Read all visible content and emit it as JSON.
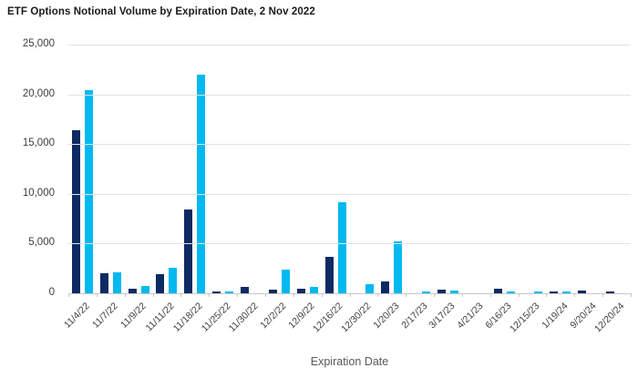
{
  "title": "ETF Options Notional Volume by Expiration Date, 2 Nov 2022",
  "colors": {
    "series_1": "#0e2a63",
    "series_2": "#00b9f0",
    "gridline": "#e2e2e2",
    "axis_line": "#c8c8c8",
    "title_text": "#1a1a1a",
    "tick_text": "#3f3f3f",
    "axis_title_text": "#595959"
  },
  "chart_data": {
    "type": "bar",
    "title": "ETF Options Notional Volume by Expiration Date, 2 Nov 2022",
    "xlabel": "Expiration Date",
    "ylabel": "",
    "ylim": [
      0,
      25000
    ],
    "ytick_interval": 5000,
    "ytick_labels": [
      "0",
      "5,000",
      "10,000",
      "15,000",
      "20,000",
      "25,000"
    ],
    "grid": true,
    "legend": "none",
    "categories": [
      "11/4/22",
      "11/7/22",
      "11/9/22",
      "11/11/22",
      "11/18/22",
      "11/25/22",
      "11/30/22",
      "12/2/22",
      "12/9/22",
      "12/16/22",
      "12/30/22",
      "1/20/23",
      "2/17/23",
      "3/17/23",
      "4/21/23",
      "6/16/23",
      "12/15/23",
      "1/19/24",
      "9/20/24",
      "12/20/24"
    ],
    "series": [
      {
        "name": "series_1_dark_navy",
        "color": "#0e2a63",
        "values": [
          16400,
          2000,
          450,
          1950,
          8450,
          200,
          600,
          400,
          450,
          3650,
          0,
          1150,
          0,
          400,
          0,
          500,
          0,
          200,
          250,
          200
        ]
      },
      {
        "name": "series_2_cyan",
        "color": "#00b9f0",
        "values": [
          20400,
          2100,
          750,
          2600,
          22000,
          200,
          0,
          2350,
          600,
          9200,
          950,
          5250,
          200,
          250,
          0,
          150,
          200,
          200,
          0,
          0
        ]
      }
    ]
  }
}
